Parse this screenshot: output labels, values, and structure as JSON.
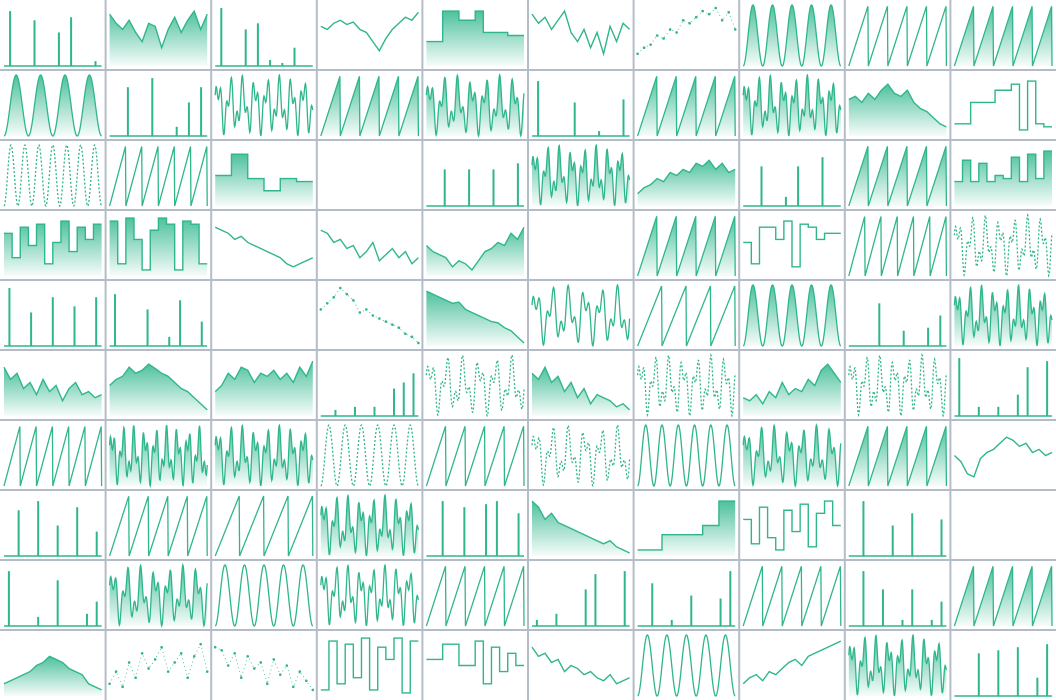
{
  "chart_data": {
    "type": "sparkline-grid",
    "columns": 10,
    "color": "#2fb68c",
    "ylim": [
      0,
      100
    ],
    "charts": [
      {
        "type": "spikes",
        "values": [
          90,
          0,
          75,
          0,
          55,
          80,
          0,
          8
        ]
      },
      {
        "type": "area",
        "values": [
          85,
          70,
          60,
          75,
          55,
          40,
          70,
          65,
          30,
          60,
          80,
          55,
          75,
          90,
          60,
          85
        ]
      },
      {
        "type": "spikes",
        "values": [
          95,
          0,
          60,
          70,
          10,
          5,
          30,
          0
        ]
      },
      {
        "type": "line",
        "values": [
          65,
          60,
          70,
          75,
          68,
          72,
          60,
          55,
          40,
          25,
          45,
          60,
          70,
          80,
          75,
          88
        ]
      },
      {
        "type": "step-area",
        "values": [
          40,
          40,
          90,
          90,
          75,
          75,
          90,
          55,
          55,
          55,
          50,
          50
        ]
      },
      {
        "type": "line",
        "values": [
          85,
          70,
          80,
          60,
          75,
          90,
          55,
          40,
          60,
          30,
          55,
          20,
          65,
          40,
          70,
          60
        ]
      },
      {
        "type": "dots",
        "values": [
          20,
          30,
          35,
          50,
          45,
          60,
          55,
          75,
          70,
          80,
          90,
          85,
          95,
          75,
          88,
          60
        ]
      },
      {
        "type": "wave",
        "cycles": 5,
        "fill": true
      },
      {
        "type": "saw",
        "cycles": 5
      },
      {
        "type": "saw",
        "cycles": 5,
        "fill": true
      },
      {
        "type": "wave",
        "cycles": 4,
        "fill": true
      },
      {
        "type": "spikes",
        "values": [
          0,
          80,
          0,
          95,
          0,
          15,
          55,
          80
        ]
      },
      {
        "type": "wave",
        "cycles": 8,
        "mod": true
      },
      {
        "type": "saw",
        "cycles": 5,
        "fill": true
      },
      {
        "type": "wave",
        "cycles": 7,
        "mod": true,
        "fill": true
      },
      {
        "type": "spikes",
        "values": [
          90,
          0,
          0,
          55,
          0,
          8,
          0,
          60
        ]
      },
      {
        "type": "saw",
        "cycles": 5,
        "fill": true
      },
      {
        "type": "wave",
        "cycles": 8,
        "mod": true,
        "fill": true
      },
      {
        "type": "area",
        "values": [
          60,
          65,
          55,
          70,
          60,
          75,
          85,
          70,
          65,
          75,
          55,
          45,
          40,
          30,
          20,
          15
        ]
      },
      {
        "type": "step",
        "values": [
          20,
          20,
          55,
          55,
          55,
          75,
          75,
          85,
          10,
          90,
          20,
          15
        ]
      },
      {
        "type": "wave",
        "cycles": 7,
        "dashed": true
      },
      {
        "type": "saw",
        "cycles": 6
      },
      {
        "type": "step-area",
        "values": [
          50,
          50,
          85,
          85,
          45,
          45,
          25,
          25,
          45,
          45,
          40,
          40
        ]
      },
      {
        "type": "blank"
      },
      {
        "type": "spikes",
        "values": [
          0,
          60,
          0,
          60,
          0,
          60,
          0,
          70
        ]
      },
      {
        "type": "wave",
        "cycles": 8,
        "mod": true,
        "fill": true
      },
      {
        "type": "area",
        "values": [
          20,
          30,
          35,
          45,
          40,
          55,
          50,
          60,
          55,
          70,
          65,
          75,
          60,
          70,
          55,
          60
        ]
      },
      {
        "type": "spikes",
        "values": [
          0,
          65,
          0,
          15,
          65,
          0,
          80,
          0
        ]
      },
      {
        "type": "saw",
        "cycles": 5,
        "fill": true
      },
      {
        "type": "step-area",
        "values": [
          40,
          75,
          40,
          70,
          40,
          50,
          45,
          80,
          40,
          85,
          45,
          90
        ]
      },
      {
        "type": "step-area",
        "values": [
          70,
          30,
          80,
          50,
          85,
          20,
          55,
          90,
          40,
          80,
          60,
          85
        ]
      },
      {
        "type": "step-area",
        "values": [
          90,
          20,
          95,
          60,
          10,
          75,
          95,
          85,
          10,
          90,
          85,
          20
        ]
      },
      {
        "type": "line",
        "values": [
          80,
          75,
          70,
          60,
          65,
          55,
          50,
          45,
          40,
          35,
          30,
          20,
          15,
          20,
          25,
          30
        ]
      },
      {
        "type": "line",
        "values": [
          75,
          70,
          55,
          60,
          45,
          50,
          30,
          40,
          55,
          25,
          35,
          45,
          30,
          40,
          20,
          30
        ]
      },
      {
        "type": "area",
        "values": [
          50,
          40,
          35,
          30,
          15,
          25,
          20,
          10,
          25,
          40,
          45,
          55,
          50,
          70,
          60,
          80
        ]
      },
      {
        "type": "blank"
      },
      {
        "type": "saw",
        "cycles": 5,
        "fill": true
      },
      {
        "type": "step",
        "values": [
          55,
          20,
          80,
          80,
          60,
          90,
          15,
          85,
          80,
          60,
          70,
          70
        ]
      },
      {
        "type": "saw",
        "cycles": 6
      },
      {
        "type": "wave",
        "cycles": 7,
        "dashed": true,
        "mod": true
      },
      {
        "type": "spikes",
        "values": [
          95,
          0,
          55,
          0,
          80,
          0,
          65,
          0,
          80
        ]
      },
      {
        "type": "spikes",
        "values": [
          85,
          0,
          0,
          60,
          0,
          15,
          75,
          0,
          40
        ]
      },
      {
        "type": "blank"
      },
      {
        "type": "dots",
        "values": [
          60,
          70,
          80,
          95,
          85,
          75,
          55,
          60,
          50,
          45,
          40,
          35,
          30,
          20,
          15,
          5
        ]
      },
      {
        "type": "area",
        "values": [
          90,
          85,
          80,
          75,
          70,
          72,
          60,
          55,
          50,
          45,
          40,
          38,
          30,
          25,
          15,
          5
        ]
      },
      {
        "type": "wave",
        "cycles": 6,
        "mod": true
      },
      {
        "type": "saw",
        "cycles": 4
      },
      {
        "type": "wave",
        "cycles": 5,
        "fill": true
      },
      {
        "type": "spikes",
        "values": [
          0,
          0,
          70,
          0,
          25,
          0,
          30,
          50
        ]
      },
      {
        "type": "wave",
        "cycles": 8,
        "mod": true,
        "fill": true
      },
      {
        "type": "area",
        "values": [
          80,
          60,
          70,
          45,
          55,
          35,
          60,
          40,
          50,
          25,
          45,
          55,
          35,
          40,
          30,
          35
        ]
      },
      {
        "type": "area",
        "values": [
          50,
          60,
          65,
          80,
          70,
          75,
          85,
          78,
          70,
          65,
          55,
          45,
          40,
          30,
          20,
          10
        ]
      },
      {
        "type": "area",
        "values": [
          40,
          50,
          70,
          60,
          80,
          75,
          55,
          70,
          65,
          75,
          60,
          70,
          55,
          80,
          65,
          90
        ]
      },
      {
        "type": "spikes",
        "values": [
          0,
          10,
          0,
          15,
          0,
          15,
          0,
          45,
          55,
          70
        ]
      },
      {
        "type": "wave",
        "cycles": 6,
        "dashed": true,
        "mod": true
      },
      {
        "type": "area",
        "values": [
          70,
          60,
          80,
          55,
          65,
          40,
          55,
          30,
          45,
          20,
          35,
          30,
          25,
          15,
          20,
          10
        ]
      },
      {
        "type": "wave",
        "cycles": 7,
        "dashed": true,
        "mod": true
      },
      {
        "type": "area",
        "values": [
          30,
          25,
          35,
          20,
          40,
          30,
          55,
          35,
          45,
          40,
          60,
          50,
          75,
          85,
          70,
          55
        ]
      },
      {
        "type": "wave",
        "cycles": 7,
        "dashed": true,
        "mod": true
      },
      {
        "type": "spikes",
        "values": [
          95,
          0,
          15,
          0,
          15,
          0,
          35,
          80,
          0,
          90
        ]
      },
      {
        "type": "saw",
        "cycles": 6
      },
      {
        "type": "wave",
        "cycles": 9,
        "mod": true,
        "fill": true
      },
      {
        "type": "wave",
        "cycles": 8,
        "mod": true,
        "fill": true
      },
      {
        "type": "wave",
        "cycles": 6,
        "dashed": true
      },
      {
        "type": "saw",
        "cycles": 5
      },
      {
        "type": "wave",
        "cycles": 6,
        "dashed": true,
        "mod": true
      },
      {
        "type": "wave",
        "cycles": 6
      },
      {
        "type": "wave",
        "cycles": 7,
        "mod": true,
        "fill": true
      },
      {
        "type": "saw",
        "cycles": 5,
        "fill": true
      },
      {
        "type": "line",
        "values": [
          50,
          40,
          20,
          15,
          45,
          55,
          60,
          70,
          80,
          75,
          65,
          70,
          55,
          60,
          50,
          55
        ]
      },
      {
        "type": "spikes",
        "values": [
          0,
          75,
          0,
          90,
          0,
          50,
          0,
          80,
          0,
          40
        ]
      },
      {
        "type": "saw",
        "cycles": 5
      },
      {
        "type": "saw",
        "cycles": 4
      },
      {
        "type": "wave",
        "cycles": 8,
        "mod": true,
        "fill": true
      },
      {
        "type": "spikes",
        "values": [
          0,
          90,
          0,
          80,
          0,
          85,
          90,
          0,
          70
        ]
      },
      {
        "type": "area",
        "values": [
          90,
          80,
          60,
          70,
          55,
          50,
          45,
          40,
          35,
          30,
          25,
          20,
          25,
          15,
          10,
          5
        ]
      },
      {
        "type": "step-area",
        "values": [
          10,
          10,
          10,
          35,
          35,
          35,
          35,
          35,
          50,
          50,
          90,
          90
        ]
      },
      {
        "type": "step",
        "values": [
          60,
          20,
          80,
          30,
          10,
          75,
          40,
          85,
          15,
          70,
          90,
          50
        ]
      },
      {
        "type": "spikes",
        "values": [
          0,
          90,
          0,
          0,
          50,
          0,
          70,
          0,
          0,
          60
        ]
      },
      {
        "type": "blank"
      },
      {
        "type": "spikes",
        "values": [
          90,
          0,
          0,
          15,
          0,
          75,
          0,
          0,
          20,
          40
        ]
      },
      {
        "type": "wave",
        "cycles": 7,
        "mod": true,
        "fill": true
      },
      {
        "type": "wave",
        "cycles": 5
      },
      {
        "type": "wave",
        "cycles": 8,
        "mod": true
      },
      {
        "type": "saw",
        "cycles": 5
      },
      {
        "type": "spikes",
        "values": [
          10,
          0,
          20,
          0,
          0,
          60,
          85,
          0,
          0,
          90
        ]
      },
      {
        "type": "spikes",
        "values": [
          0,
          70,
          0,
          10,
          0,
          50,
          0,
          0,
          45,
          90
        ]
      },
      {
        "type": "saw",
        "cycles": 5
      },
      {
        "type": "spikes",
        "values": [
          0,
          90,
          0,
          60,
          0,
          10,
          60,
          0,
          10,
          40
        ]
      },
      {
        "type": "saw",
        "cycles": 5,
        "fill": true
      },
      {
        "type": "area",
        "values": [
          20,
          25,
          30,
          35,
          40,
          50,
          55,
          65,
          60,
          55,
          45,
          40,
          35,
          20,
          15,
          10
        ]
      },
      {
        "type": "dots",
        "values": [
          20,
          40,
          15,
          55,
          30,
          70,
          45,
          60,
          80,
          40,
          55,
          70,
          30,
          65,
          85,
          40
        ]
      },
      {
        "type": "dots",
        "values": [
          80,
          75,
          50,
          70,
          30,
          65,
          45,
          55,
          20,
          60,
          35,
          50,
          15,
          40,
          25,
          10
        ]
      },
      {
        "type": "step",
        "values": [
          10,
          90,
          20,
          85,
          30,
          95,
          10,
          80,
          60,
          95,
          5,
          90
        ]
      },
      {
        "type": "step",
        "values": [
          60,
          60,
          85,
          85,
          50,
          50,
          90,
          20,
          80,
          40,
          70,
          50
        ]
      },
      {
        "type": "line",
        "values": [
          80,
          65,
          70,
          55,
          60,
          40,
          50,
          45,
          35,
          40,
          30,
          25,
          35,
          20,
          25,
          30
        ]
      },
      {
        "type": "wave",
        "cycles": 5
      },
      {
        "type": "line",
        "values": [
          20,
          30,
          35,
          25,
          40,
          35,
          45,
          55,
          60,
          50,
          65,
          70,
          75,
          80,
          85,
          90
        ]
      },
      {
        "type": "wave",
        "cycles": 8,
        "mod": true,
        "fill": true
      },
      {
        "type": "spikes",
        "values": [
          0,
          0,
          70,
          0,
          75,
          0,
          80,
          0,
          30,
          85
        ]
      }
    ]
  }
}
